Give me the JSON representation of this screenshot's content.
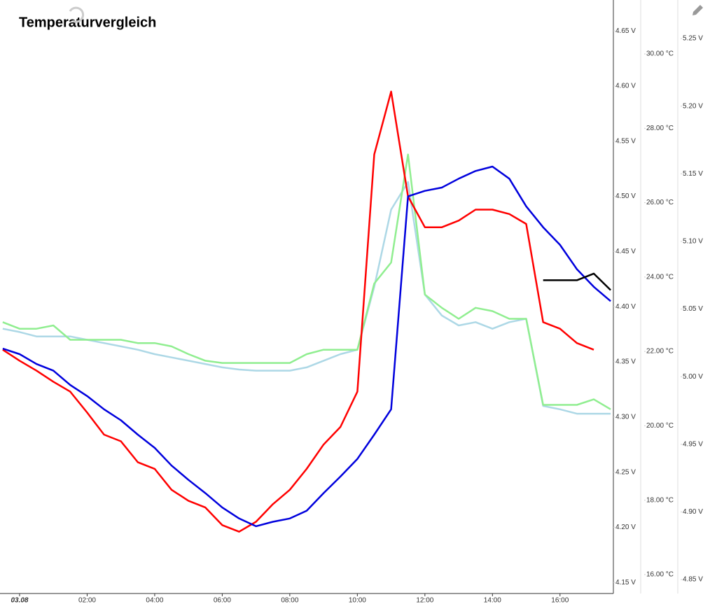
{
  "chart_data": {
    "type": "line",
    "title": "Temperaturvergleich",
    "x": [
      -0.5,
      0,
      0.5,
      1,
      1.5,
      2,
      2.5,
      3,
      3.5,
      4,
      4.5,
      5,
      5.5,
      6,
      6.5,
      7,
      7.5,
      8,
      8.5,
      9,
      9.5,
      10,
      10.5,
      11,
      11.5,
      12,
      12.5,
      13,
      13.5,
      14,
      14.5,
      15,
      15.5,
      16,
      16.5,
      17,
      17.5
    ],
    "xlim": [
      -0.58,
      17.58
    ],
    "xticks": [
      {
        "value": 0,
        "label": "03.08"
      },
      {
        "value": 2,
        "label": "02:00"
      },
      {
        "value": 4,
        "label": "04:00"
      },
      {
        "value": 6,
        "label": "06:00"
      },
      {
        "value": 8,
        "label": "08:00"
      },
      {
        "value": 10,
        "label": "10:00"
      },
      {
        "value": 12,
        "label": "12:00"
      },
      {
        "value": 14,
        "label": "14:00"
      },
      {
        "value": 16,
        "label": "16:00"
      }
    ],
    "ylim": [
      4.14,
      4.678
    ],
    "yticks": [
      {
        "value": 4.15,
        "label": "4.15 V"
      },
      {
        "value": 4.2,
        "label": "4.20 V"
      },
      {
        "value": 4.25,
        "label": "4.25 V"
      },
      {
        "value": 4.3,
        "label": "4.30 V"
      },
      {
        "value": 4.35,
        "label": "4.35 V"
      },
      {
        "value": 4.4,
        "label": "4.40 V"
      },
      {
        "value": 4.45,
        "label": "4.45 V"
      },
      {
        "value": 4.5,
        "label": "4.50 V"
      },
      {
        "value": 4.55,
        "label": "4.55 V"
      },
      {
        "value": 4.6,
        "label": "4.60 V"
      },
      {
        "value": 4.65,
        "label": "4.65 V"
      }
    ],
    "y2lim": [
      15.49,
      31.45
    ],
    "y2ticks": [
      {
        "value": 16,
        "label": "16.00 °C"
      },
      {
        "value": 18,
        "label": "18.00 °C"
      },
      {
        "value": 20,
        "label": "20.00 °C"
      },
      {
        "value": 22,
        "label": "22.00 °C"
      },
      {
        "value": 24,
        "label": "24.00 °C"
      },
      {
        "value": 26,
        "label": "26.00 °C"
      },
      {
        "value": 28,
        "label": "28.00 °C"
      },
      {
        "value": 30,
        "label": "30.00 °C"
      }
    ],
    "y3lim": [
      4.8397,
      5.2785
    ],
    "y3ticks": [
      {
        "value": 4.85,
        "label": "4.85 V"
      },
      {
        "value": 4.9,
        "label": "4.90 V"
      },
      {
        "value": 4.95,
        "label": "4.95 V"
      },
      {
        "value": 5.0,
        "label": "5.00 V"
      },
      {
        "value": 5.05,
        "label": "5.05 V"
      },
      {
        "value": 5.1,
        "label": "5.10 V"
      },
      {
        "value": 5.15,
        "label": "5.15 V"
      },
      {
        "value": 5.2,
        "label": "5.20 V"
      },
      {
        "value": 5.25,
        "label": "5.25 V"
      }
    ],
    "series": [
      {
        "color": "#add8e6",
        "values": [
          4.38,
          4.377,
          4.373,
          4.373,
          4.373,
          4.37,
          4.367,
          4.364,
          4.361,
          4.357,
          4.354,
          4.351,
          4.348,
          4.345,
          4.343,
          4.342,
          4.342,
          4.342,
          4.345,
          4.351,
          4.357,
          4.361,
          4.418,
          4.488,
          4.513,
          4.411,
          4.392,
          4.383,
          4.386,
          4.38,
          4.386,
          4.389,
          4.31,
          4.307,
          4.303,
          4.303,
          4.303
        ]
      },
      {
        "color": "#90ee90",
        "values": [
          4.386,
          4.38,
          4.38,
          4.383,
          4.37,
          4.37,
          4.37,
          4.37,
          4.367,
          4.367,
          4.364,
          4.357,
          4.351,
          4.349,
          4.349,
          4.349,
          4.349,
          4.349,
          4.357,
          4.361,
          4.361,
          4.361,
          4.421,
          4.44,
          4.538,
          4.411,
          4.399,
          4.389,
          4.399,
          4.396,
          4.389,
          4.389,
          4.311,
          4.311,
          4.311,
          4.316,
          4.307
        ]
      },
      {
        "color": "#ff0000",
        "values": [
          4.361,
          4.351,
          4.342,
          4.332,
          4.323,
          4.304,
          4.284,
          4.278,
          4.259,
          4.253,
          4.234,
          4.224,
          4.218,
          4.202,
          4.196,
          4.205,
          4.221,
          4.234,
          4.253,
          4.275,
          4.291,
          4.323,
          4.538,
          4.595,
          4.5,
          4.472,
          4.472,
          4.478,
          4.488,
          4.488,
          4.484,
          4.475,
          4.386,
          4.38,
          4.367,
          4.361,
          null
        ]
      },
      {
        "color": "#0000dd",
        "values": [
          4.362,
          4.357,
          4.348,
          4.342,
          4.329,
          4.319,
          4.307,
          4.297,
          4.284,
          4.272,
          4.256,
          4.243,
          4.231,
          4.218,
          4.208,
          4.201,
          4.205,
          4.208,
          4.215,
          4.231,
          4.246,
          4.262,
          4.284,
          4.307,
          4.5,
          4.505,
          4.508,
          4.516,
          4.523,
          4.527,
          4.516,
          4.491,
          4.472,
          4.456,
          4.434,
          4.418,
          4.405
        ]
      },
      {
        "color": "#000000",
        "values": [
          null,
          null,
          null,
          null,
          null,
          null,
          null,
          null,
          null,
          null,
          null,
          null,
          null,
          null,
          null,
          null,
          null,
          null,
          null,
          null,
          null,
          null,
          null,
          null,
          null,
          null,
          null,
          null,
          null,
          null,
          null,
          null,
          4.424,
          4.424,
          4.424,
          4.43,
          4.415
        ]
      }
    ]
  }
}
